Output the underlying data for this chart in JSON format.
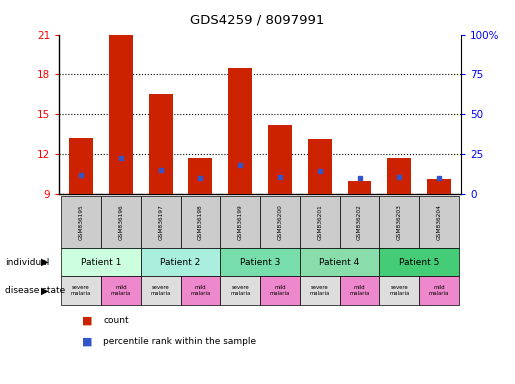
{
  "title": "GDS4259 / 8097991",
  "samples": [
    "GSM836195",
    "GSM836196",
    "GSM836197",
    "GSM836198",
    "GSM836199",
    "GSM836200",
    "GSM836201",
    "GSM836202",
    "GSM836203",
    "GSM836204"
  ],
  "bar_heights": [
    13.2,
    21.0,
    16.5,
    11.7,
    18.5,
    14.2,
    13.1,
    10.0,
    11.7,
    10.1
  ],
  "bar_base": 9.0,
  "blue_marker_values": [
    10.4,
    11.7,
    10.8,
    10.2,
    11.2,
    10.3,
    10.7,
    10.2,
    10.3,
    10.2
  ],
  "ylim_left": [
    9,
    21
  ],
  "ylim_right": [
    0,
    100
  ],
  "yticks_left": [
    9,
    12,
    15,
    18,
    21
  ],
  "yticks_right": [
    0,
    25,
    50,
    75,
    100
  ],
  "ytick_labels_right": [
    "0",
    "25",
    "50",
    "75",
    "100%"
  ],
  "bar_color": "#cc2200",
  "blue_color": "#3355cc",
  "patients": [
    {
      "label": "Patient 1",
      "start": 0,
      "end": 2,
      "color": "#ccffdd"
    },
    {
      "label": "Patient 2",
      "start": 2,
      "end": 4,
      "color": "#aaeedd"
    },
    {
      "label": "Patient 3",
      "start": 4,
      "end": 6,
      "color": "#77ddaa"
    },
    {
      "label": "Patient 4",
      "start": 6,
      "end": 8,
      "color": "#88ddaa"
    },
    {
      "label": "Patient 5",
      "start": 8,
      "end": 10,
      "color": "#44cc77"
    }
  ],
  "disease_states": [
    {
      "label": "severe\nmalaria",
      "color": "#dddddd"
    },
    {
      "label": "mild\nmalaria",
      "color": "#ee88cc"
    },
    {
      "label": "severe\nmalaria",
      "color": "#dddddd"
    },
    {
      "label": "mild\nmalaria",
      "color": "#ee88cc"
    },
    {
      "label": "severe\nmalaria",
      "color": "#dddddd"
    },
    {
      "label": "mild\nmalaria",
      "color": "#ee88cc"
    },
    {
      "label": "severe\nmalaria",
      "color": "#dddddd"
    },
    {
      "label": "mild\nmalaria",
      "color": "#ee88cc"
    },
    {
      "label": "severe\nmalaria",
      "color": "#dddddd"
    },
    {
      "label": "mild\nmalaria",
      "color": "#ee88cc"
    }
  ],
  "sample_label_bg": "#cccccc",
  "bar_width": 0.6,
  "legend_items": [
    {
      "label": "count",
      "color": "#cc2200"
    },
    {
      "label": "percentile rank within the sample",
      "color": "#3355cc"
    }
  ],
  "grid_yticks": [
    12,
    15,
    18
  ]
}
